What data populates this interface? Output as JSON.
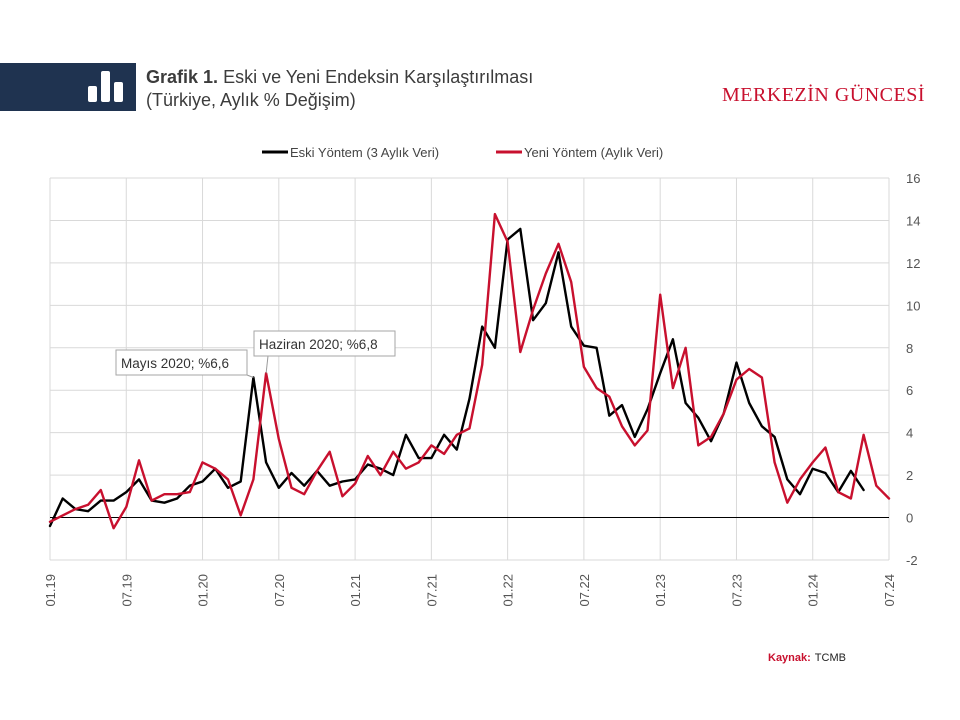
{
  "header": {
    "title_bold": "Grafik 1.",
    "title_rest": "Eski ve Yeni Endeksin Karşılaştırılması",
    "subtitle": "(Türkiye,  Aylık % Değişim)",
    "brand": "MERKEZİN GÜNCESİ",
    "icon": "bar-chart-icon"
  },
  "source": {
    "label": "Kaynak:",
    "value": "TCMB"
  },
  "colors": {
    "header_bg": "#1f3350",
    "old": "#000000",
    "new": "#c8102e",
    "brand": "#c8102e"
  },
  "chart_data": {
    "type": "line",
    "title": "",
    "xlabel": "",
    "ylabel": "",
    "ylim": [
      -2,
      16
    ],
    "yticks": [
      "-2",
      "0",
      "2",
      "4",
      "6",
      "8",
      "10",
      "12",
      "14",
      "16"
    ],
    "x_start": "2019-01",
    "x_tick_labels": [
      "01.19",
      "07.19",
      "01.20",
      "07.20",
      "01.21",
      "07.21",
      "01.22",
      "07.22",
      "01.23",
      "07.23",
      "01.24",
      "07.24"
    ],
    "grid": true,
    "legend_position": "top",
    "series": [
      {
        "name": "Eski Yöntem (3 Aylık Veri)",
        "color": "#000000",
        "values": [
          -0.4,
          0.9,
          0.4,
          0.3,
          0.8,
          0.8,
          1.2,
          1.8,
          0.8,
          0.7,
          0.9,
          1.5,
          1.7,
          2.3,
          1.4,
          1.7,
          6.6,
          2.6,
          1.4,
          2.1,
          1.5,
          2.2,
          1.5,
          1.7,
          1.8,
          2.5,
          2.3,
          2.0,
          3.9,
          2.8,
          2.8,
          3.9,
          3.2,
          5.6,
          9.0,
          8.0,
          13.1,
          13.6,
          9.3,
          10.1,
          12.5,
          9.0,
          8.1,
          8.0,
          4.8,
          5.3,
          3.8,
          5.1,
          6.8,
          8.4,
          5.4,
          4.7,
          3.6,
          4.9,
          7.3,
          5.4,
          4.3,
          3.8,
          1.8,
          1.1,
          2.3,
          2.1,
          1.2,
          2.2,
          1.3
        ]
      },
      {
        "name": "Yeni Yöntem (Aylık Veri)",
        "color": "#c8102e",
        "values": [
          -0.2,
          0.1,
          0.4,
          0.6,
          1.3,
          -0.5,
          0.5,
          2.7,
          0.8,
          1.1,
          1.1,
          1.2,
          2.6,
          2.3,
          1.8,
          0.1,
          1.8,
          6.8,
          3.7,
          1.4,
          1.1,
          2.2,
          3.1,
          1.0,
          1.6,
          2.9,
          2.0,
          3.1,
          2.3,
          2.6,
          3.4,
          3.0,
          3.9,
          4.2,
          7.2,
          14.3,
          13.0,
          7.8,
          9.8,
          11.5,
          12.9,
          11.1,
          7.1,
          6.1,
          5.7,
          4.3,
          3.4,
          4.1,
          10.5,
          6.1,
          8.0,
          3.4,
          3.8,
          4.9,
          6.5,
          7.0,
          6.6,
          2.6,
          0.7,
          1.8,
          2.6,
          3.3,
          1.2,
          0.9,
          3.9,
          1.5,
          0.9
        ]
      }
    ],
    "annotations": [
      {
        "text": "Mayıs 2020; %6,6",
        "series": 0,
        "x": "2020-05",
        "y": 6.6
      },
      {
        "text": "Haziran 2020; %6,8",
        "series": 1,
        "x": "2020-06",
        "y": 6.8
      }
    ]
  }
}
